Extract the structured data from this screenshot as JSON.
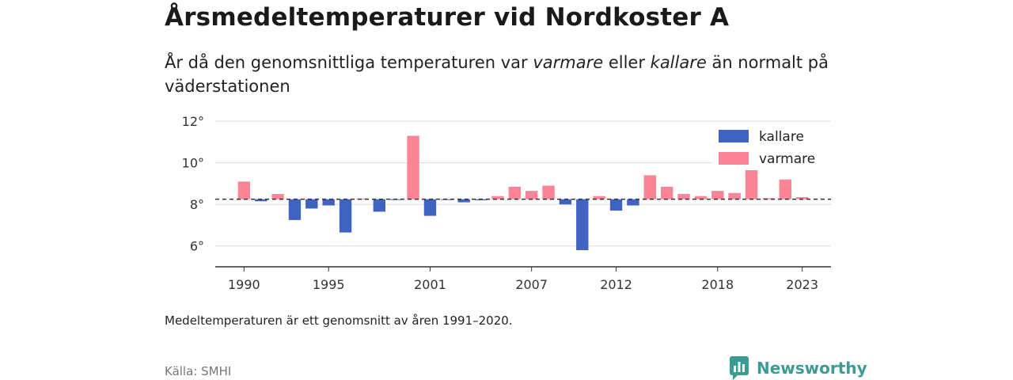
{
  "header": {
    "title": "Årsmedeltemperaturer vid Nordkoster A",
    "subtitle_1": "År då den genomsnittliga temperaturen var ",
    "subtitle_warm": "varmare",
    "subtitle_2": " eller ",
    "subtitle_cold": "kallare",
    "subtitle_3": " än normalt på väderstationen"
  },
  "footer": {
    "note": "Medeltemperaturen är ett genomsnitt av åren 1991–2020.",
    "source": "Källa: SMHI",
    "brand": "Newsworthy"
  },
  "colors": {
    "colder": "#4063c1",
    "warmer": "#fb8495",
    "brand": "#3a9c93"
  },
  "chart_data": {
    "type": "bar",
    "title": "Årsmedeltemperaturer vid Nordkoster A",
    "baseline": 8.25,
    "ylim": [
      5,
      12.5
    ],
    "xlim": [
      1988.3,
      2024.7
    ],
    "yticks": [
      6,
      8,
      10,
      12
    ],
    "ytick_labels": [
      "6°",
      "8°",
      "10°",
      "12°"
    ],
    "xticks": [
      1990,
      1995,
      2001,
      2007,
      2012,
      2018,
      2023
    ],
    "grid": true,
    "legend": {
      "position": "top-right",
      "entries": [
        {
          "key": "colder",
          "label": "kallare"
        },
        {
          "key": "warmer",
          "label": "varmare"
        }
      ]
    },
    "years": [
      1990,
      1991,
      1992,
      1993,
      1994,
      1995,
      1996,
      1997,
      1998,
      1999,
      2000,
      2001,
      2002,
      2003,
      2004,
      2005,
      2006,
      2007,
      2008,
      2009,
      2010,
      2011,
      2012,
      2013,
      2014,
      2015,
      2016,
      2017,
      2018,
      2019,
      2020,
      2021,
      2022,
      2023
    ],
    "values": [
      9.1,
      8.15,
      8.5,
      7.25,
      7.8,
      7.95,
      6.65,
      8.28,
      7.65,
      8.22,
      11.3,
      7.45,
      8.24,
      8.1,
      8.2,
      8.4,
      8.85,
      8.65,
      8.9,
      8.0,
      5.8,
      8.4,
      7.7,
      7.95,
      9.4,
      8.85,
      8.5,
      8.4,
      8.65,
      8.55,
      9.85,
      8.3,
      9.2,
      8.35
    ]
  }
}
